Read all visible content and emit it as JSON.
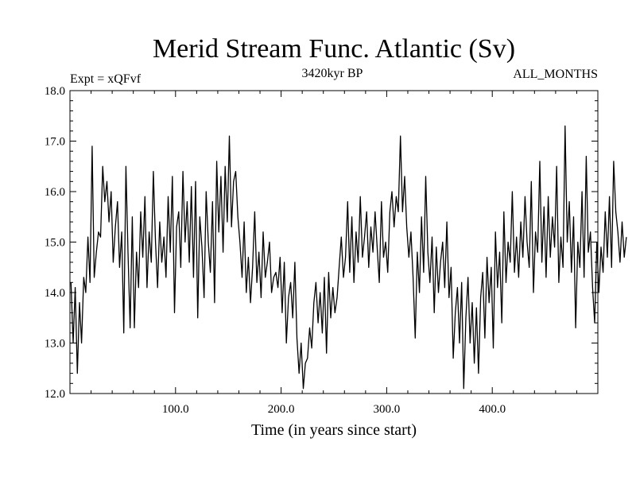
{
  "chart_data": {
    "type": "line",
    "title": "Merid Stream Func. Atlantic (Sv)",
    "subtitle_left": "Expt = xQFvf",
    "subtitle_center": "3420kyr BP",
    "subtitle_right": "ALL_MONTHS",
    "xlabel": "Time (in years since start)",
    "ylabel": "",
    "xlim": [
      0,
      500
    ],
    "ylim": [
      12.0,
      18.0
    ],
    "x_ticks": [
      100,
      200,
      300,
      400
    ],
    "x_tick_labels": [
      "100.0",
      "200.0",
      "300.0",
      "400.0"
    ],
    "y_ticks": [
      12,
      13,
      14,
      15,
      16,
      17,
      18
    ],
    "y_tick_labels": [
      "12.0",
      "13.0",
      "14.0",
      "15.0",
      "16.0",
      "17.0",
      "18.0"
    ],
    "series": [
      {
        "name": "Merid Stream Func. Atlantic",
        "x_start": 1,
        "x_step": 2,
        "values": [
          14.2,
          13.0,
          14.1,
          12.4,
          13.8,
          13.0,
          14.3,
          14.0,
          15.1,
          14.2,
          16.9,
          14.3,
          14.8,
          15.2,
          15.1,
          16.5,
          15.8,
          16.2,
          15.4,
          16.0,
          14.6,
          15.3,
          15.8,
          14.5,
          15.2,
          13.2,
          16.5,
          14.8,
          13.3,
          15.5,
          13.3,
          14.8,
          14.1,
          15.6,
          14.7,
          15.9,
          14.1,
          15.2,
          14.6,
          16.4,
          15.0,
          14.1,
          15.4,
          14.6,
          15.1,
          14.3,
          15.9,
          14.8,
          16.3,
          13.6,
          15.3,
          15.6,
          14.5,
          16.4,
          15.0,
          15.8,
          14.6,
          16.1,
          14.3,
          16.2,
          13.5,
          15.5,
          14.9,
          13.9,
          16.0,
          15.0,
          14.4,
          15.8,
          13.8,
          16.6,
          15.2,
          16.3,
          14.8,
          16.5,
          15.4,
          17.1,
          15.3,
          16.2,
          16.4,
          15.5,
          15.0,
          14.3,
          15.4,
          14.0,
          14.7,
          13.8,
          14.5,
          15.6,
          14.2,
          14.8,
          13.9,
          15.2,
          14.3,
          14.6,
          15.0,
          14.0,
          14.3,
          14.4,
          14.1,
          14.7,
          13.6,
          14.6,
          13.0,
          13.9,
          14.2,
          13.5,
          14.6,
          13.1,
          12.4,
          13.0,
          12.1,
          12.6,
          12.7,
          13.3,
          12.9,
          13.8,
          14.2,
          13.4,
          14.0,
          13.2,
          14.3,
          12.8,
          14.4,
          13.5,
          14.1,
          13.6,
          13.9,
          14.5,
          15.1,
          14.3,
          14.7,
          15.8,
          14.4,
          15.5,
          14.2,
          15.2,
          14.6,
          15.9,
          14.7,
          15.1,
          15.6,
          14.5,
          15.3,
          14.8,
          15.6,
          14.9,
          14.2,
          15.8,
          14.7,
          15.0,
          14.4,
          15.6,
          16.0,
          15.3,
          15.9,
          15.6,
          17.1,
          15.6,
          16.3,
          15.3,
          14.7,
          15.2,
          14.3,
          13.1,
          14.8,
          14.0,
          15.5,
          14.4,
          16.3,
          14.8,
          14.2,
          15.1,
          13.6,
          14.9,
          14.0,
          14.6,
          15.0,
          14.1,
          15.4,
          13.9,
          14.5,
          12.7,
          13.6,
          14.1,
          13.0,
          14.2,
          12.1,
          13.5,
          14.3,
          13.0,
          13.8,
          12.6,
          13.7,
          12.4,
          13.9,
          14.4,
          13.1,
          14.7,
          13.8,
          14.5,
          12.9,
          15.2,
          14.1,
          14.8,
          13.4,
          15.6,
          14.2,
          15.0,
          14.6,
          16.0,
          14.4,
          15.1,
          14.3,
          15.4,
          14.7,
          15.9,
          15.0,
          14.5,
          16.2,
          14.0,
          15.2,
          14.8,
          16.6,
          14.6,
          15.7,
          14.3,
          15.9,
          14.7,
          15.5,
          14.9,
          16.5,
          14.2,
          15.1,
          14.5,
          17.3,
          15.0,
          15.8,
          14.4,
          15.5,
          13.3,
          15.0,
          14.5,
          16.0,
          14.3,
          16.7,
          14.8,
          15.2,
          14.1,
          13.4,
          15.0,
          14.0,
          14.9,
          14.4,
          15.6,
          14.7,
          15.9,
          14.5,
          16.6,
          15.6,
          15.2,
          14.6,
          15.4,
          14.7,
          15.1
        ]
      }
    ]
  }
}
